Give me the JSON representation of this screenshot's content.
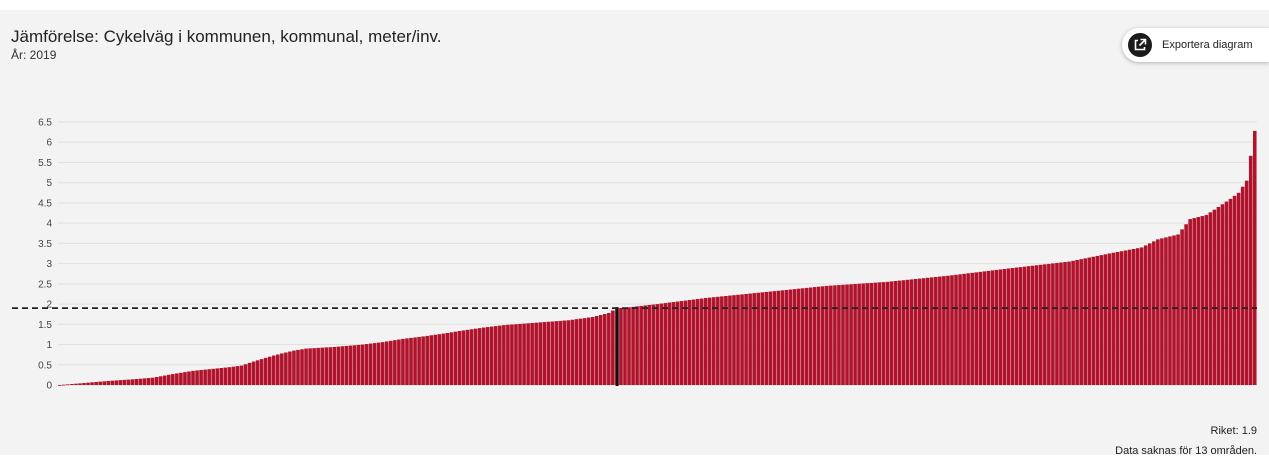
{
  "header": {
    "title": "Jämförelse: Cykelväg i kommunen, kommunal, meter/inv.",
    "subtitle": "År: 2019"
  },
  "export_button": {
    "label": "Exportera diagram",
    "icon": "export-external-link-icon"
  },
  "footer": {
    "riket_label": "Riket: 1.9",
    "missing_note": "Data saknas för 13 områden."
  },
  "colors": {
    "bar": "#b0132b",
    "reference_line": "#222222",
    "highlight_bar": "#111111",
    "grid": "#e2e2e2",
    "background": "#f3f3f3"
  },
  "chart_data": {
    "type": "bar",
    "title": "Jämförelse: Cykelväg i kommunen, kommunal, meter/inv.",
    "subtitle": "År: 2019",
    "xlabel": "",
    "ylabel": "",
    "ylim": [
      0,
      6.5
    ],
    "yticks": [
      "0",
      "0.5",
      "1",
      "1.5",
      "2",
      "2.5",
      "3",
      "3.5",
      "4",
      "4.5",
      "5",
      "5.5",
      "6",
      "6.5"
    ],
    "grid": true,
    "sorted": "ascending",
    "reference_line": {
      "label": "Riket",
      "value": 1.9,
      "style": "dashed"
    },
    "highlighted_index": 138,
    "profile": [
      [
        0,
        0.0
      ],
      [
        5,
        0.04
      ],
      [
        12,
        0.1
      ],
      [
        18,
        0.14
      ],
      [
        23,
        0.18
      ],
      [
        28,
        0.27
      ],
      [
        33,
        0.35
      ],
      [
        38,
        0.4
      ],
      [
        42,
        0.44
      ],
      [
        45,
        0.48
      ],
      [
        48,
        0.58
      ],
      [
        52,
        0.7
      ],
      [
        55,
        0.78
      ],
      [
        58,
        0.85
      ],
      [
        61,
        0.9
      ],
      [
        68,
        0.94
      ],
      [
        75,
        1.0
      ],
      [
        80,
        1.06
      ],
      [
        85,
        1.14
      ],
      [
        90,
        1.2
      ],
      [
        95,
        1.27
      ],
      [
        100,
        1.35
      ],
      [
        105,
        1.42
      ],
      [
        110,
        1.48
      ],
      [
        118,
        1.54
      ],
      [
        126,
        1.6
      ],
      [
        132,
        1.68
      ],
      [
        136,
        1.78
      ],
      [
        138,
        1.9
      ],
      [
        140,
        1.91
      ],
      [
        148,
        2.0
      ],
      [
        160,
        2.15
      ],
      [
        175,
        2.3
      ],
      [
        190,
        2.45
      ],
      [
        205,
        2.55
      ],
      [
        220,
        2.7
      ],
      [
        235,
        2.88
      ],
      [
        250,
        3.05
      ],
      [
        260,
        3.25
      ],
      [
        268,
        3.4
      ],
      [
        272,
        3.6
      ],
      [
        277,
        3.72
      ],
      [
        280,
        4.1
      ],
      [
        284,
        4.2
      ],
      [
        287,
        4.4
      ],
      [
        290,
        4.6
      ],
      [
        292,
        4.75
      ],
      [
        294,
        5.05
      ],
      [
        296,
        6.28
      ]
    ]
  }
}
